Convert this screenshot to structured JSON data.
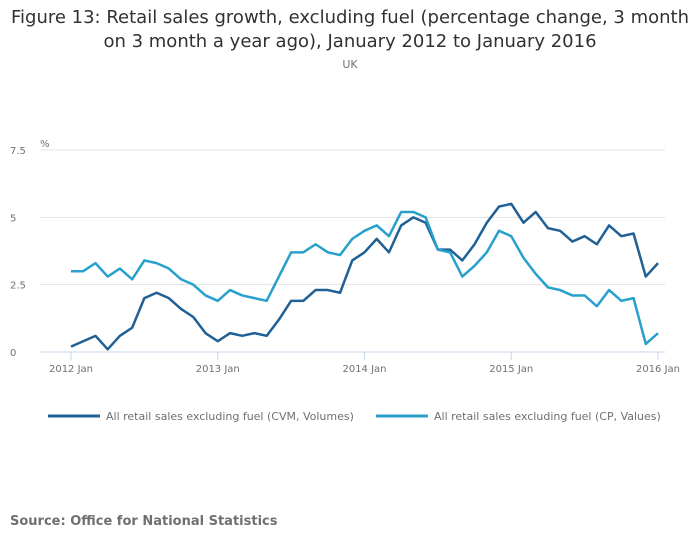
{
  "chart_data": {
    "type": "line",
    "title": "Figure 13: Retail sales growth, excluding fuel (percentage change, 3 month on 3 month a year ago), January 2012 to January 2016",
    "subtitle": "UK",
    "ylabel": "%",
    "xlabel": "",
    "ylim": [
      0,
      7.5
    ],
    "y_ticks": [
      "0",
      "2.5",
      "5",
      "7.5"
    ],
    "x_ticks": [
      "2012 Jan",
      "2013 Jan",
      "2014 Jan",
      "2015 Jan",
      "2016 Jan"
    ],
    "x_range": [
      "2012 Jan",
      "2016 Jan"
    ],
    "x_frequency": "monthly",
    "grid": true,
    "legend_position": "bottom",
    "series": [
      {
        "name": "All retail sales excluding fuel (CVM, Volumes)",
        "color": "#206095",
        "values": [
          0.2,
          0.4,
          0.6,
          0.1,
          0.6,
          0.9,
          2.0,
          2.2,
          2.0,
          1.6,
          1.3,
          0.7,
          0.4,
          0.7,
          0.6,
          0.7,
          0.6,
          1.2,
          1.9,
          1.9,
          2.3,
          2.3,
          2.2,
          3.4,
          3.7,
          4.2,
          3.7,
          4.7,
          5.0,
          4.8,
          3.8,
          3.8,
          3.4,
          4.0,
          4.8,
          5.4,
          5.5,
          4.8,
          5.2,
          4.6,
          4.5,
          4.1,
          4.3,
          4.0,
          4.7,
          4.3,
          4.4,
          2.8,
          3.3
        ]
      },
      {
        "name": "All retail sales excluding fuel (CP, Values)",
        "color": "#27a0cc",
        "values": [
          3.0,
          3.0,
          3.3,
          2.8,
          3.1,
          2.7,
          3.4,
          3.3,
          3.1,
          2.7,
          2.5,
          2.1,
          1.9,
          2.3,
          2.1,
          2.0,
          1.9,
          2.8,
          3.7,
          3.7,
          4.0,
          3.7,
          3.6,
          4.2,
          4.5,
          4.7,
          4.3,
          5.2,
          5.2,
          5.0,
          3.8,
          3.7,
          2.8,
          3.2,
          3.7,
          4.5,
          4.3,
          3.5,
          2.9,
          2.4,
          2.3,
          2.1,
          2.1,
          1.7,
          2.3,
          1.9,
          2.0,
          0.3,
          0.7
        ]
      }
    ]
  },
  "source": "Source: Office for National Statistics"
}
